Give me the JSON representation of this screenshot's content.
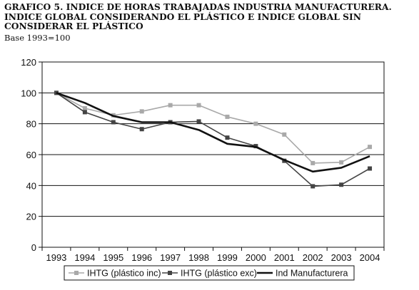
{
  "chart_data": {
    "type": "line",
    "title_lines": [
      "GRAFICO 5. INDICE DE HORAS TRABAJADAS INDUSTRIA MANUFACTURERA.",
      "INDICE GLOBAL CONSIDERANDO EL PLÁSTICO E INDICE GLOBAL SIN",
      "CONSIDERAR EL PLÁSTICO"
    ],
    "subtitle": "Base 1993=100",
    "xlabel": "",
    "ylabel": "",
    "x": [
      "1993",
      "1994",
      "1995",
      "1996",
      "1997",
      "1998",
      "1999",
      "2000",
      "2001",
      "2002",
      "2003",
      "2004"
    ],
    "ylim": [
      0,
      120
    ],
    "yticks": [
      0,
      20,
      40,
      60,
      80,
      100,
      120
    ],
    "grid": "horizontal",
    "legend_position": "bottom",
    "series": [
      {
        "name": "IHTG (plástico inc)",
        "values": [
          100,
          90,
          85.5,
          88,
          92,
          92,
          84.5,
          80,
          73,
          54.5,
          55,
          65
        ],
        "color": "#a9a9a9",
        "marker": "square"
      },
      {
        "name": "IHTG (plástico exc)",
        "values": [
          100,
          87.5,
          81,
          76.5,
          81,
          81.5,
          71,
          65.5,
          56,
          39.5,
          40.5,
          51
        ],
        "color": "#444444",
        "marker": "square"
      },
      {
        "name": "Ind Manufacturera",
        "values": [
          100,
          93.5,
          85,
          81,
          81,
          76,
          67,
          65,
          56.5,
          49,
          51.5,
          59
        ],
        "color": "#111111",
        "marker": "none"
      }
    ]
  }
}
